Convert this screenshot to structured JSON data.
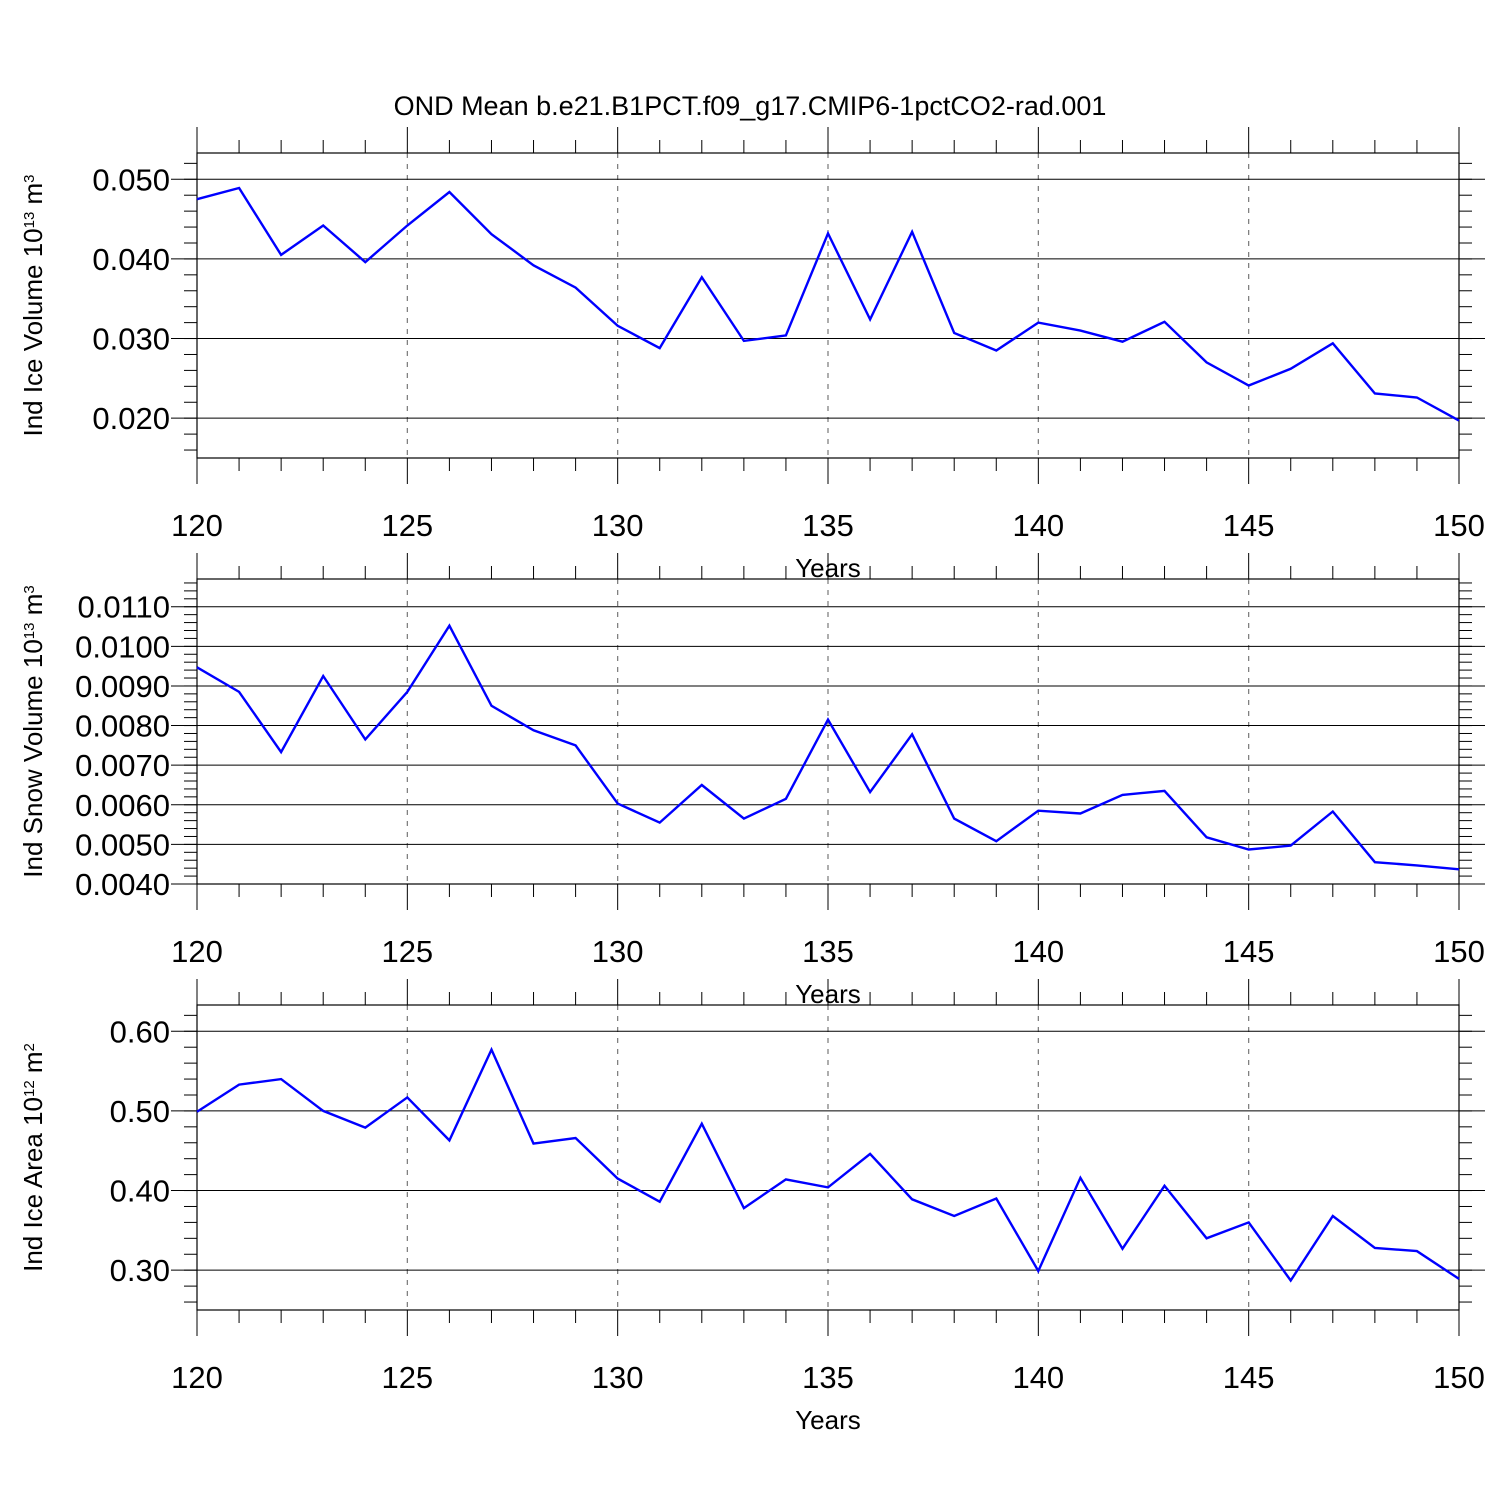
{
  "title": "OND Mean b.e21.B1PCT.f09_g17.CMIP6-1pctCO2-rad.001",
  "colors": {
    "line": "#0000ff",
    "axis": "#000000",
    "grid": "#777777"
  },
  "chart_data": [
    {
      "type": "line",
      "xlabel": "Years",
      "ylabel": {
        "base": "Ind Ice Volume 10",
        "exp": "13",
        "unit": " m",
        "unit_exp": "3"
      },
      "xlim": [
        120,
        150
      ],
      "ylim": [
        0.015,
        0.0533
      ],
      "x_ticks": [
        "120",
        "125",
        "130",
        "135",
        "140",
        "145",
        "150"
      ],
      "y_ticks": [
        {
          "value": 0.02,
          "label": "0.020"
        },
        {
          "value": 0.03,
          "label": "0.030"
        },
        {
          "value": 0.04,
          "label": "0.040"
        },
        {
          "value": 0.05,
          "label": "0.050"
        }
      ],
      "grid": true,
      "x": [
        120,
        121,
        122,
        123,
        124,
        125,
        126,
        127,
        128,
        129,
        130,
        131,
        132,
        133,
        134,
        135,
        136,
        137,
        138,
        139,
        140,
        141,
        142,
        143,
        144,
        145,
        146,
        147,
        148,
        149,
        150
      ],
      "values": [
        0.0475,
        0.0489,
        0.0405,
        0.0442,
        0.0396,
        0.0442,
        0.0484,
        0.0431,
        0.0392,
        0.0364,
        0.0316,
        0.0288,
        0.0377,
        0.0297,
        0.0304,
        0.0432,
        0.0324,
        0.0434,
        0.0307,
        0.0285,
        0.032,
        0.031,
        0.0296,
        0.0321,
        0.027,
        0.0241,
        0.0262,
        0.0294,
        0.0231,
        0.0226,
        0.0197
      ]
    },
    {
      "type": "line",
      "xlabel": "Years",
      "ylabel": {
        "base": "Ind Snow Volume 10",
        "exp": "13",
        "unit": " m",
        "unit_exp": "3"
      },
      "xlim": [
        120,
        150
      ],
      "ylim": [
        0.004,
        0.0117
      ],
      "x_ticks": [
        "120",
        "125",
        "130",
        "135",
        "140",
        "145",
        "150"
      ],
      "y_ticks": [
        {
          "value": 0.004,
          "label": "0.0040"
        },
        {
          "value": 0.005,
          "label": "0.0050"
        },
        {
          "value": 0.006,
          "label": "0.0060"
        },
        {
          "value": 0.007,
          "label": "0.0070"
        },
        {
          "value": 0.008,
          "label": "0.0080"
        },
        {
          "value": 0.009,
          "label": "0.0090"
        },
        {
          "value": 0.01,
          "label": "0.0100"
        },
        {
          "value": 0.011,
          "label": "0.0110"
        }
      ],
      "grid": true,
      "x": [
        120,
        121,
        122,
        123,
        124,
        125,
        126,
        127,
        128,
        129,
        130,
        131,
        132,
        133,
        134,
        135,
        136,
        137,
        138,
        139,
        140,
        141,
        142,
        143,
        144,
        145,
        146,
        147,
        148,
        149,
        150
      ],
      "values": [
        0.00947,
        0.00885,
        0.00733,
        0.00925,
        0.00765,
        0.00885,
        0.01052,
        0.0085,
        0.00788,
        0.0075,
        0.00603,
        0.00555,
        0.0065,
        0.00565,
        0.00615,
        0.00815,
        0.00632,
        0.00778,
        0.00565,
        0.00508,
        0.00585,
        0.00578,
        0.00625,
        0.00635,
        0.00518,
        0.00487,
        0.00497,
        0.00583,
        0.00455,
        0.00447,
        0.00437
      ]
    },
    {
      "type": "line",
      "xlabel": "Years",
      "ylabel": {
        "base": "Ind Ice Area 10",
        "exp": "12",
        "unit": " m",
        "unit_exp": "2"
      },
      "xlim": [
        120,
        150
      ],
      "ylim": [
        0.25,
        0.633
      ],
      "x_ticks": [
        "120",
        "125",
        "130",
        "135",
        "140",
        "145",
        "150"
      ],
      "y_ticks": [
        {
          "value": 0.3,
          "label": "0.30"
        },
        {
          "value": 0.4,
          "label": "0.40"
        },
        {
          "value": 0.5,
          "label": "0.50"
        },
        {
          "value": 0.6,
          "label": "0.60"
        }
      ],
      "grid": true,
      "x": [
        120,
        121,
        122,
        123,
        124,
        125,
        126,
        127,
        128,
        129,
        130,
        131,
        132,
        133,
        134,
        135,
        136,
        137,
        138,
        139,
        140,
        141,
        142,
        143,
        144,
        145,
        146,
        147,
        148,
        149,
        150
      ],
      "values": [
        0.499,
        0.533,
        0.54,
        0.5,
        0.479,
        0.517,
        0.463,
        0.577,
        0.459,
        0.466,
        0.415,
        0.386,
        0.484,
        0.378,
        0.414,
        0.404,
        0.446,
        0.389,
        0.368,
        0.39,
        0.299,
        0.416,
        0.327,
        0.406,
        0.34,
        0.36,
        0.287,
        0.368,
        0.328,
        0.324,
        0.289
      ]
    }
  ]
}
